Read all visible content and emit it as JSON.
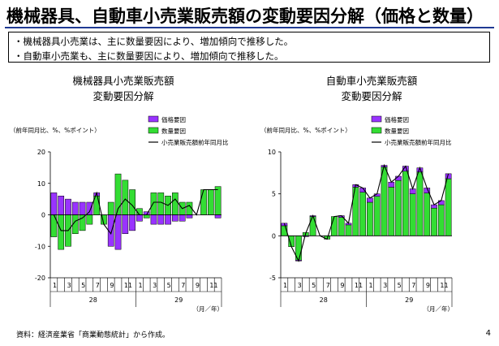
{
  "title": "機械器具、自動車小売業販売額の変動要因分解（価格と数量）",
  "bullets": [
    "・機械器具小売業は、主に数量要因により、増加傾向で推移した。",
    "・自動車小売業も、主に数量要因により、増加傾向で推移した。"
  ],
  "colors": {
    "price": "#9933ff",
    "quantity": "#33dd33",
    "line": "#000000",
    "rule": "#1f3a93"
  },
  "chart_data": [
    {
      "type": "bar",
      "stacked": true,
      "title": [
        "機械器具小売業販売額",
        "変動要因分解"
      ],
      "ylabel": "（前年同月比、%、%ポイント）",
      "xunit": "（月／年）",
      "ylim": [
        -20,
        20
      ],
      "yticks": [
        -20,
        -10,
        0,
        10,
        20
      ],
      "month_ticks": [
        "1",
        "3",
        "5",
        "7",
        "9",
        "11",
        "1",
        "3",
        "5",
        "7",
        "9",
        "11"
      ],
      "years": [
        "28",
        "29"
      ],
      "legend": [
        "価格要因",
        "数量要因",
        "小売業販売額前年同月比"
      ],
      "legend_position": "top-right",
      "series": [
        {
          "name": "価格要因",
          "type": "bar",
          "values": [
            7,
            6,
            5,
            4,
            4,
            4,
            1,
            0,
            -10,
            -11,
            -6,
            -5,
            -2,
            1,
            -3,
            -3,
            -3,
            -2,
            -2,
            -1,
            0,
            0,
            0,
            -1
          ]
        },
        {
          "name": "数量要因",
          "type": "bar",
          "values": [
            -7,
            -11,
            -10,
            -6,
            -5,
            -3,
            6,
            -3,
            4,
            13,
            11,
            8,
            2,
            -1,
            7,
            7,
            6,
            7,
            4,
            4,
            0,
            8,
            8,
            9
          ]
        },
        {
          "name": "小売業販売額前年同月比",
          "type": "line",
          "values": [
            0,
            -5,
            -5,
            -2,
            -1,
            1,
            7,
            -3,
            -6,
            2,
            5,
            3,
            0,
            0,
            4,
            4,
            3,
            5,
            2,
            3,
            0,
            8,
            8,
            8
          ]
        }
      ]
    },
    {
      "type": "bar",
      "stacked": true,
      "title": [
        "自動車小売業販売額",
        "変動要因分解"
      ],
      "ylabel": "（前年同月比、%、%ポイント）",
      "xunit": "（月／年）",
      "ylim": [
        -5,
        10
      ],
      "yticks": [
        -5,
        0,
        5,
        10
      ],
      "month_ticks": [
        "1",
        "3",
        "5",
        "7",
        "9",
        "11",
        "1",
        "3",
        "5",
        "7",
        "9",
        "11"
      ],
      "years": [
        "28",
        "29"
      ],
      "legend": [
        "価格要因",
        "数量要因",
        "小売業販売額前年同月比"
      ],
      "legend_position": "top-right",
      "series": [
        {
          "name": "価格要因",
          "type": "bar",
          "values": [
            0.3,
            0,
            -0.1,
            -0.1,
            0.1,
            0,
            0,
            0,
            0.2,
            0.2,
            0.3,
            0.5,
            0.5,
            0.3,
            0.2,
            0.6,
            0.5,
            0.6,
            0.6,
            0.5,
            0.6,
            0.4,
            0.5,
            0.6
          ]
        },
        {
          "name": "数量要因",
          "type": "bar",
          "values": [
            1.2,
            -1.3,
            -2.9,
            0.4,
            2.3,
            0,
            -0.4,
            2.3,
            2.2,
            1.3,
            5.8,
            5.2,
            4.0,
            4.7,
            8.2,
            5.8,
            6.6,
            7.7,
            5.0,
            7.6,
            5.1,
            3.3,
            3.7,
            6.8
          ]
        },
        {
          "name": "小売業販売額前年同月比",
          "type": "line",
          "values": [
            1.5,
            -1.3,
            -3.0,
            0.3,
            2.4,
            0,
            -0.4,
            2.3,
            2.4,
            1.5,
            6.1,
            5.7,
            4.5,
            5.0,
            8.4,
            6.4,
            7.1,
            8.3,
            5.6,
            8.1,
            5.7,
            3.7,
            4.2,
            7.4
          ]
        }
      ]
    }
  ],
  "source": "資料：経済産業省「商業動態統計」から作成。",
  "page_number": "4"
}
